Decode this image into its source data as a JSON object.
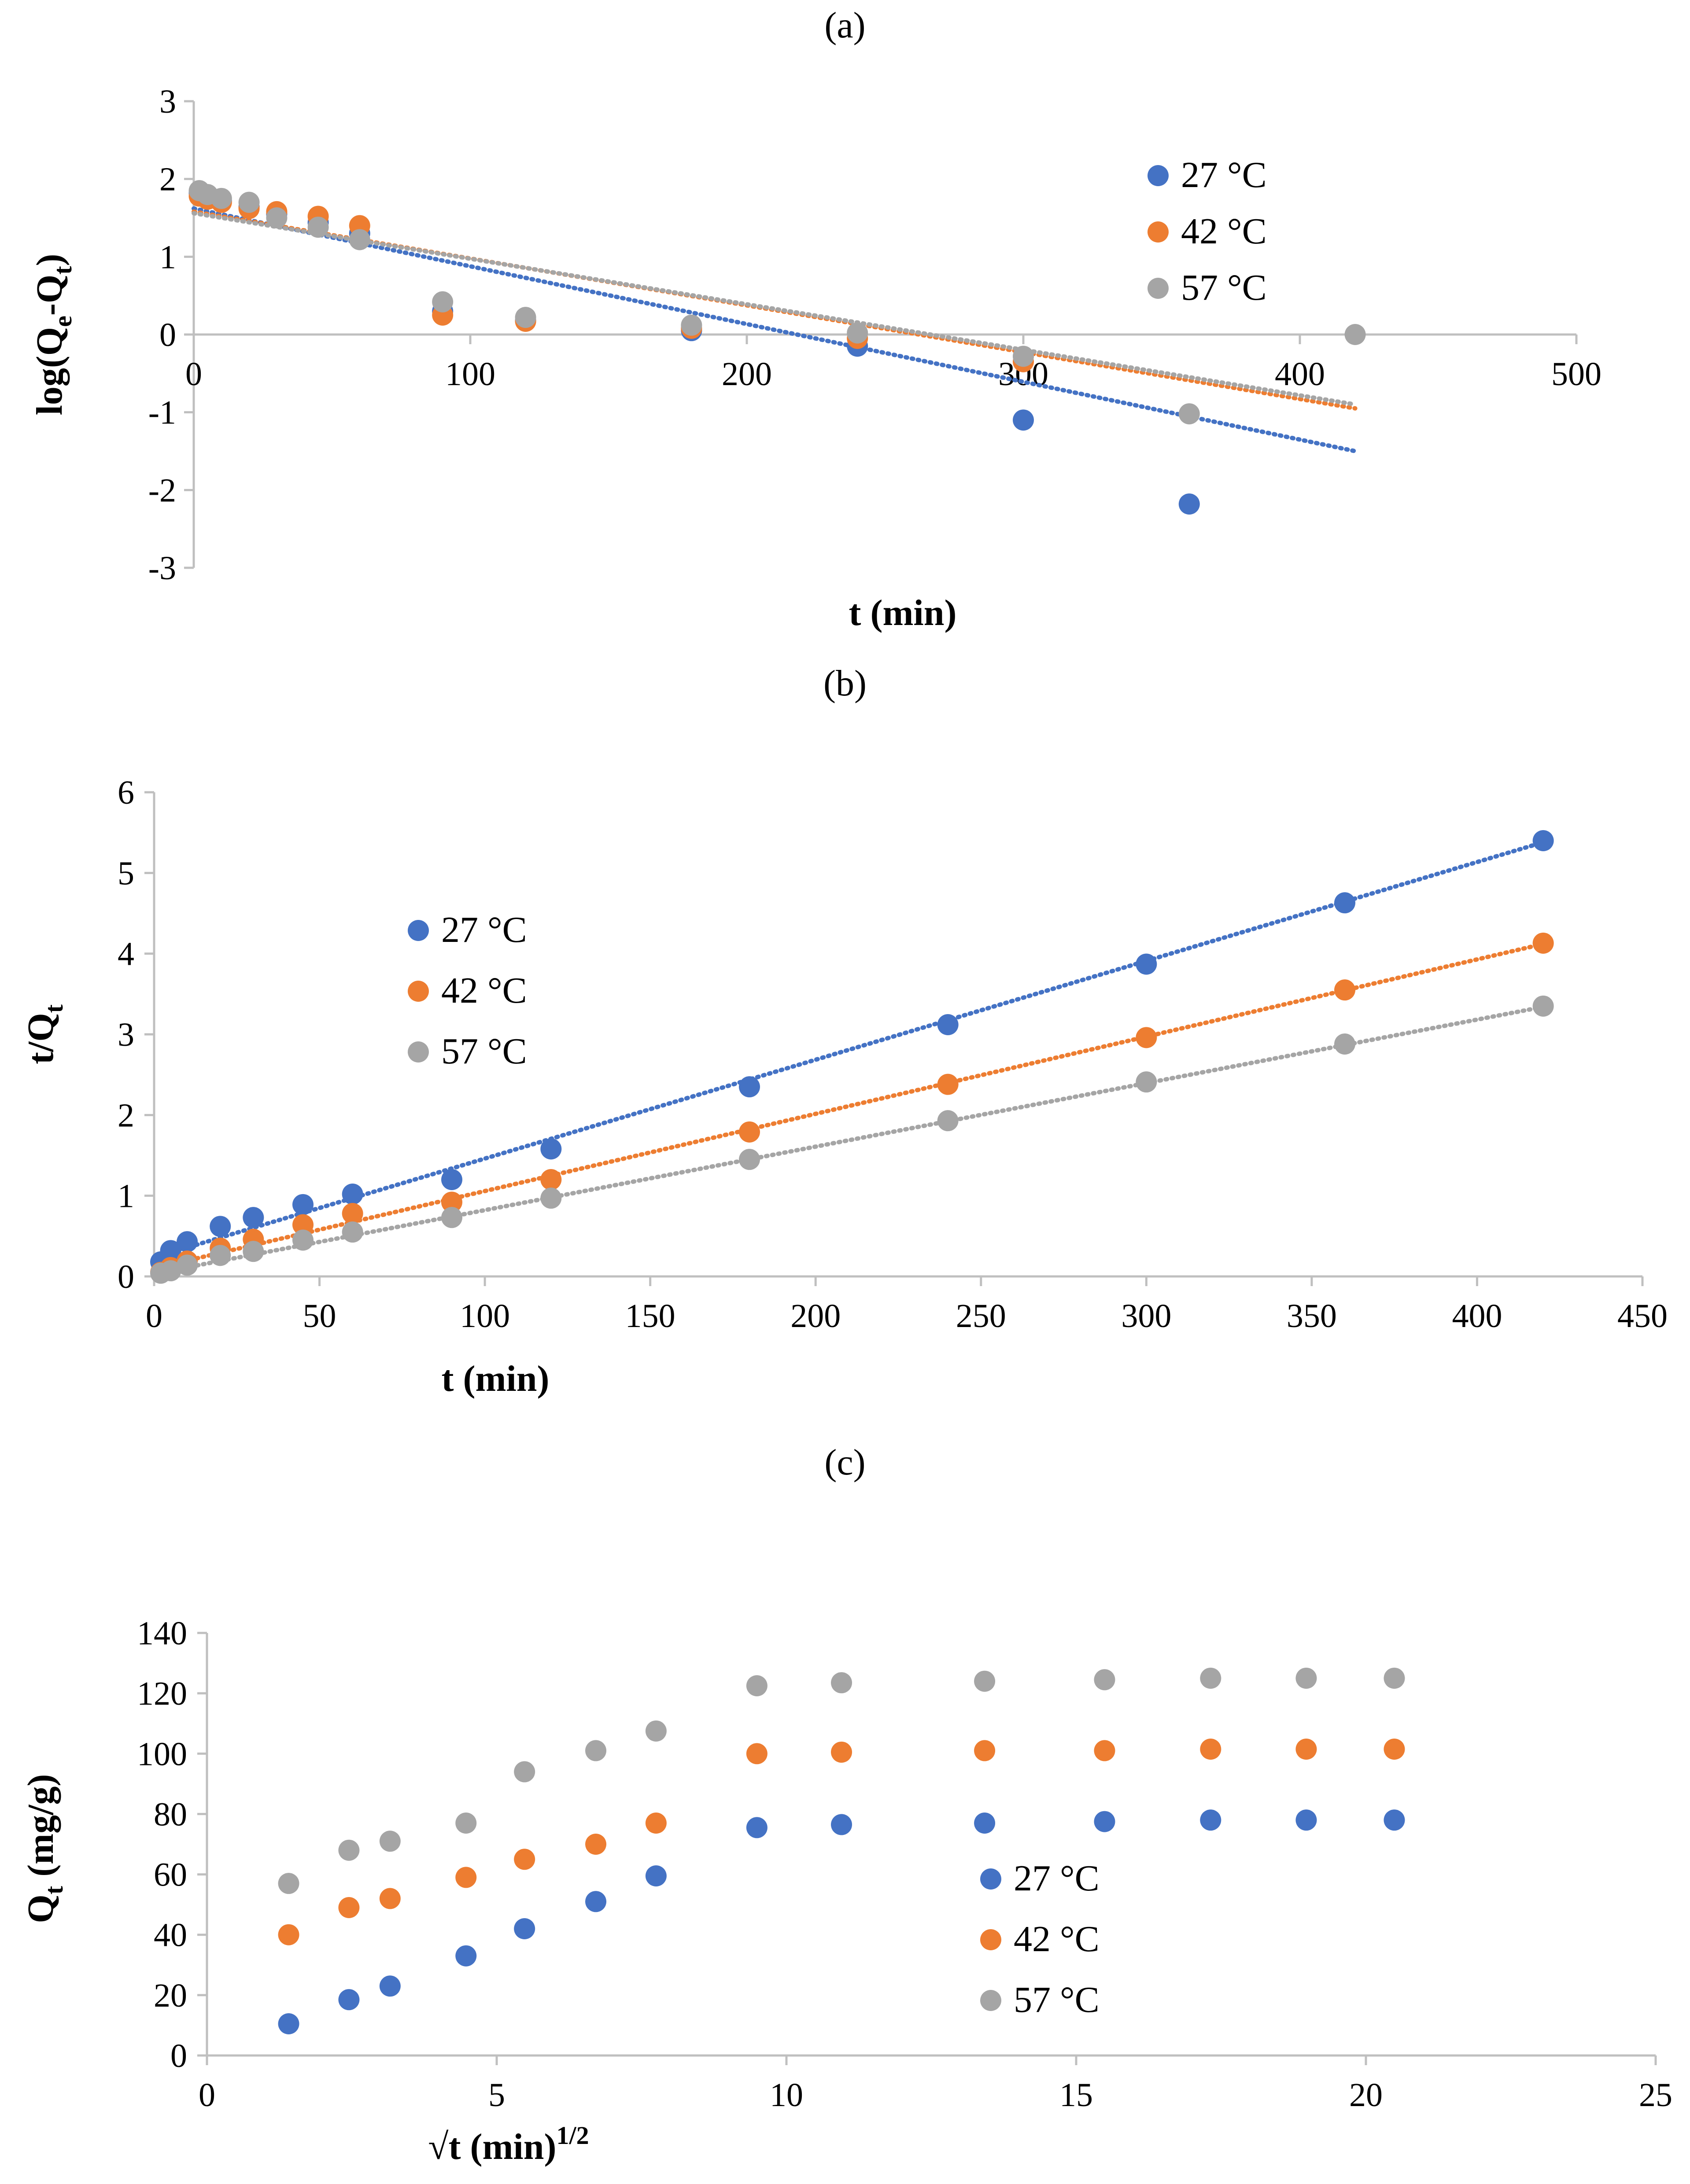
{
  "chart_data": [
    {
      "id": "a",
      "panel_label": "(a)",
      "type": "scatter",
      "xlabel": "t (min)",
      "ylabel": {
        "main": "log(Q",
        "sub1": "e",
        "mid": "-Q",
        "sub2": "t",
        "end": ")"
      },
      "xlim": [
        0,
        500
      ],
      "ylim": [
        -3,
        3
      ],
      "xticks": [
        0,
        100,
        200,
        300,
        400,
        500
      ],
      "yticks": [
        -3,
        -2,
        -1,
        0,
        1,
        2,
        3
      ],
      "xtick_labels": [
        "0",
        "100",
        "200",
        "300",
        "400",
        "500"
      ],
      "ytick_labels": [
        "-3",
        "-2",
        "-1",
        "0",
        "1",
        "2",
        "3"
      ],
      "grid": false,
      "legend_position": "top-right",
      "series": [
        {
          "name": "27 °C",
          "color": "#4472C4",
          "x": [
            2,
            5,
            10,
            20,
            30,
            45,
            60,
            90,
            120,
            180,
            240,
            300,
            360
          ],
          "y": [
            1.82,
            1.78,
            1.72,
            1.64,
            1.55,
            1.44,
            1.3,
            0.3,
            0.18,
            0.05,
            -0.15,
            -1.1,
            -2.18
          ],
          "trend": {
            "x0": 0,
            "y0": 1.62,
            "x1": 420,
            "y1": -1.5
          }
        },
        {
          "name": "42 °C",
          "color": "#ED7D31",
          "x": [
            2,
            5,
            10,
            20,
            30,
            45,
            60,
            90,
            120,
            180,
            240,
            300
          ],
          "y": [
            1.78,
            1.74,
            1.7,
            1.62,
            1.58,
            1.52,
            1.4,
            0.25,
            0.17,
            0.08,
            -0.05,
            -0.35
          ],
          "trend": {
            "x0": 0,
            "y0": 1.58,
            "x1": 420,
            "y1": -0.95
          }
        },
        {
          "name": "57 °C",
          "color": "#A5A5A5",
          "x": [
            2,
            5,
            10,
            20,
            30,
            45,
            60,
            90,
            120,
            180,
            240,
            300,
            360,
            420
          ],
          "y": [
            1.85,
            1.8,
            1.75,
            1.7,
            1.5,
            1.38,
            1.22,
            0.42,
            0.22,
            0.12,
            0.02,
            -0.28,
            -1.02,
            0.0
          ],
          "trend": {
            "x0": 0,
            "y0": 1.56,
            "x1": 420,
            "y1": -0.9
          }
        }
      ]
    },
    {
      "id": "b",
      "panel_label": "(b)",
      "type": "scatter",
      "xlabel": "t (min)",
      "ylabel": {
        "main": "t/Q",
        "sub1": "t",
        "mid": "",
        "sub2": "",
        "end": ""
      },
      "xlim": [
        0,
        450
      ],
      "ylim": [
        0,
        6
      ],
      "xticks": [
        0,
        50,
        100,
        150,
        200,
        250,
        300,
        350,
        400,
        450
      ],
      "yticks": [
        0,
        1,
        2,
        3,
        4,
        5,
        6
      ],
      "xtick_labels": [
        "0",
        "50",
        "100",
        "150",
        "200",
        "250",
        "300",
        "350",
        "400",
        "450"
      ],
      "ytick_labels": [
        "0",
        "1",
        "2",
        "3",
        "4",
        "5",
        "6"
      ],
      "grid": false,
      "legend_position": "top-left",
      "series": [
        {
          "name": "27 °C",
          "color": "#4472C4",
          "x": [
            2,
            5,
            10,
            20,
            30,
            45,
            60,
            90,
            120,
            180,
            240,
            300,
            360,
            420
          ],
          "y": [
            0.18,
            0.32,
            0.43,
            0.62,
            0.73,
            0.89,
            1.02,
            1.2,
            1.58,
            2.35,
            3.12,
            3.87,
            4.63,
            5.4
          ],
          "trend": {
            "x0": 2,
            "y0": 0.26,
            "x1": 420,
            "y1": 5.38
          }
        },
        {
          "name": "42 °C",
          "color": "#ED7D31",
          "x": [
            2,
            5,
            10,
            20,
            30,
            45,
            60,
            90,
            120,
            180,
            240,
            300,
            360,
            420
          ],
          "y": [
            0.05,
            0.11,
            0.19,
            0.35,
            0.46,
            0.64,
            0.78,
            0.92,
            1.2,
            1.79,
            2.38,
            2.96,
            3.55,
            4.13
          ],
          "trend": {
            "x0": 2,
            "y0": 0.12,
            "x1": 420,
            "y1": 4.12
          }
        },
        {
          "name": "57 °C",
          "color": "#A5A5A5",
          "x": [
            2,
            5,
            10,
            20,
            30,
            45,
            60,
            90,
            120,
            180,
            240,
            300,
            360,
            420
          ],
          "y": [
            0.04,
            0.07,
            0.14,
            0.26,
            0.31,
            0.45,
            0.55,
            0.73,
            0.97,
            1.45,
            1.93,
            2.41,
            2.88,
            3.35
          ],
          "trend": {
            "x0": 2,
            "y0": 0.05,
            "x1": 420,
            "y1": 3.34
          }
        }
      ]
    },
    {
      "id": "c",
      "panel_label": "(c)",
      "type": "scatter",
      "xlabel": {
        "main": "√t (min)",
        "sup": "1/2"
      },
      "ylabel": {
        "main": "Q",
        "sub1": "t",
        "mid": " (mg/g)",
        "sub2": "",
        "end": ""
      },
      "xlim": [
        0,
        25
      ],
      "ylim": [
        0,
        140
      ],
      "xticks": [
        0,
        5,
        10,
        15,
        20,
        25
      ],
      "yticks": [
        0,
        20,
        40,
        60,
        80,
        100,
        120,
        140
      ],
      "xtick_labels": [
        "0",
        "5",
        "10",
        "15",
        "20",
        "25"
      ],
      "ytick_labels": [
        "0",
        "20",
        "40",
        "60",
        "80",
        "100",
        "120",
        "140"
      ],
      "grid": false,
      "legend_position": "bottom-right",
      "series": [
        {
          "name": "27 °C",
          "color": "#4472C4",
          "x": [
            1.41,
            2.45,
            3.16,
            4.47,
            5.48,
            6.71,
            7.75,
            9.49,
            10.95,
            13.42,
            15.49,
            17.32,
            18.97,
            20.49
          ],
          "y": [
            10.5,
            18.5,
            23.0,
            33.0,
            42.0,
            51.0,
            59.5,
            75.5,
            76.5,
            77.0,
            77.5,
            78.0,
            78.0,
            78.0
          ]
        },
        {
          "name": "42 °C",
          "color": "#ED7D31",
          "x": [
            1.41,
            2.45,
            3.16,
            4.47,
            5.48,
            6.71,
            7.75,
            9.49,
            10.95,
            13.42,
            15.49,
            17.32,
            18.97,
            20.49
          ],
          "y": [
            40.0,
            49.0,
            52.0,
            59.0,
            65.0,
            70.0,
            77.0,
            100.0,
            100.5,
            101.0,
            101.0,
            101.5,
            101.5,
            101.5
          ]
        },
        {
          "name": "57 °C",
          "color": "#A5A5A5",
          "x": [
            1.41,
            2.45,
            3.16,
            4.47,
            5.48,
            6.71,
            7.75,
            9.49,
            10.95,
            13.42,
            15.49,
            17.32,
            18.97,
            20.49
          ],
          "y": [
            57.0,
            68.0,
            71.0,
            77.0,
            94.0,
            101.0,
            107.5,
            122.5,
            123.5,
            124.0,
            124.5,
            125.0,
            125.0,
            125.0
          ]
        }
      ]
    }
  ]
}
